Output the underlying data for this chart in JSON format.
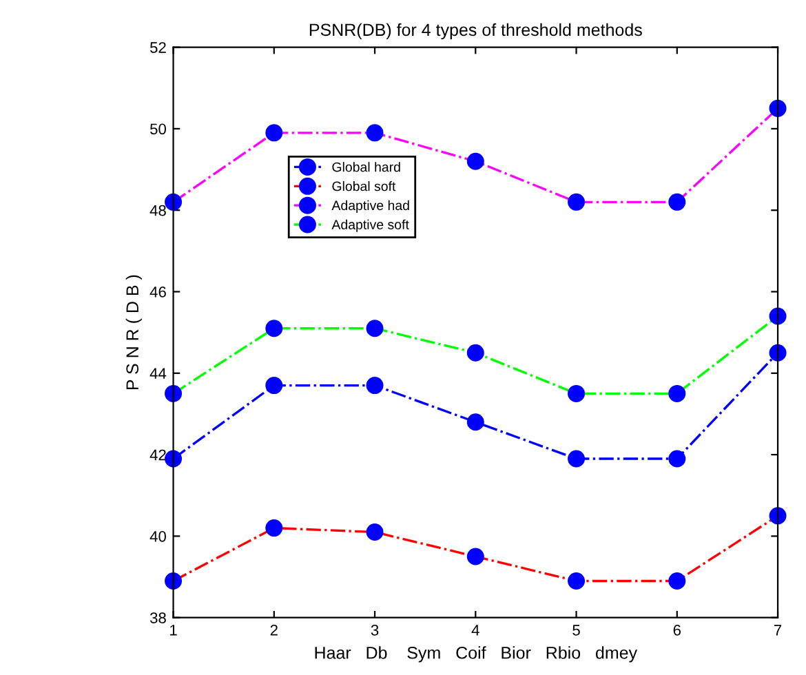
{
  "chart_data": {
    "type": "line",
    "title": "PSNR(DB) for 4 types of threshold methods",
    "xlabel": "Haar   Db    Sym   Coif   Bior   Rbio   dmey",
    "ylabel": "P S N R ( D B )",
    "x": [
      1,
      2,
      3,
      4,
      5,
      6,
      7
    ],
    "xlim": [
      1,
      7
    ],
    "xticks": [
      1,
      2,
      3,
      4,
      5,
      6,
      7
    ],
    "ylim": [
      38,
      52
    ],
    "yticks": [
      38,
      40,
      42,
      44,
      46,
      48,
      50,
      52
    ],
    "marker": "circle",
    "line_style": "dashed",
    "grid": false,
    "legend": "top left",
    "series": [
      {
        "name": "Global hard",
        "color": "#0000ff",
        "values": [
          41.9,
          43.7,
          43.7,
          42.8,
          41.9,
          41.9,
          44.5
        ]
      },
      {
        "name": "Global soft",
        "color": "#ff0000",
        "values": [
          38.9,
          40.2,
          40.1,
          39.5,
          38.9,
          38.9,
          40.5
        ]
      },
      {
        "name": "Adaptive had",
        "color": "#ff00ff",
        "values": [
          48.2,
          49.9,
          49.9,
          49.2,
          48.2,
          48.2,
          50.5
        ]
      },
      {
        "name": "Adaptive soft",
        "color": "#00ff00",
        "values": [
          43.5,
          45.1,
          45.1,
          44.5,
          43.5,
          43.5,
          45.4
        ]
      }
    ]
  }
}
